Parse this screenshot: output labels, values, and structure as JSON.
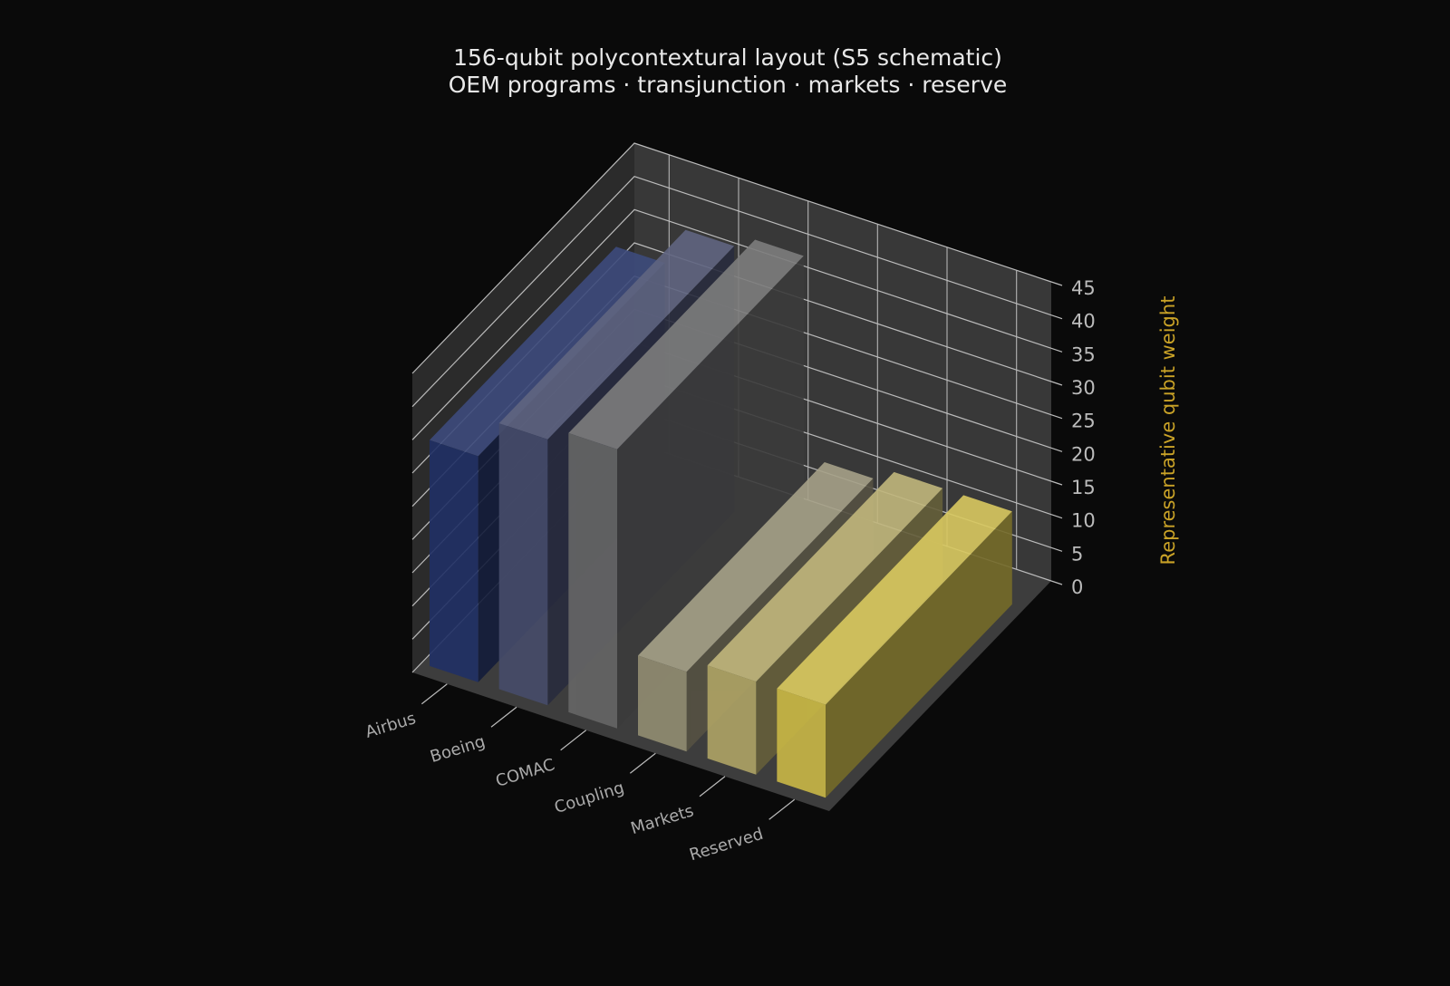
{
  "chart_data": {
    "type": "bar3d",
    "title": "156-qubit polycontextural layout (S5 schematic)",
    "subtitle": "OEM programs · transjunction · markets · reserve",
    "zlabel": "Representative qubit weight",
    "categories": [
      "Airbus",
      "Boeing",
      "COMAC",
      "Coupling",
      "Markets",
      "Reserved"
    ],
    "values": [
      34,
      40,
      42,
      12,
      14,
      14
    ],
    "colors": [
      "#22336a",
      "#4a5070",
      "#6b6b6b",
      "#9a9478",
      "#b8ad6a",
      "#d4c24a"
    ],
    "zlim": [
      0,
      45
    ],
    "zticks": [
      0,
      5,
      10,
      15,
      20,
      25,
      30,
      35,
      40,
      45
    ]
  }
}
